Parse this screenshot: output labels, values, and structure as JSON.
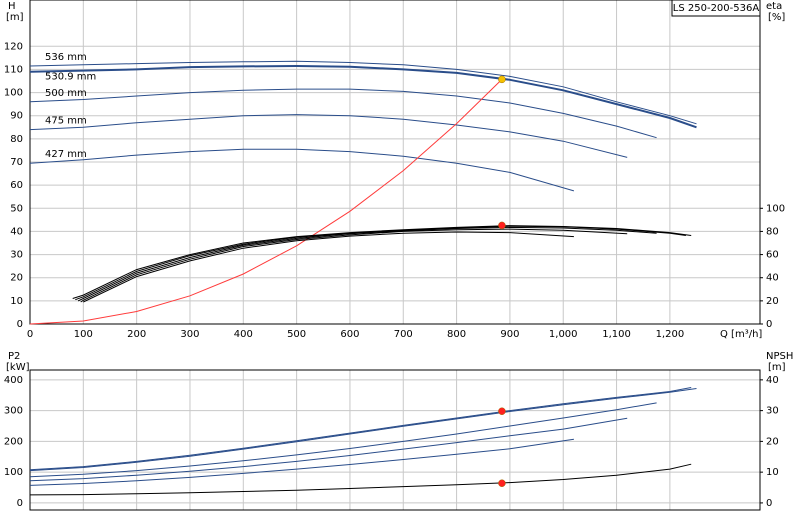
{
  "chart_data": [
    {
      "type": "line",
      "title": "LS 250-200-536A",
      "ylabel": "H",
      "yunit": "[m]",
      "y2label": "eta",
      "y2unit": "[%]",
      "xlabel": "Q [m³/h]",
      "xlim": [
        0,
        1369
      ],
      "xticks": [
        0,
        100,
        200,
        300,
        400,
        500,
        600,
        700,
        800,
        900,
        {
          "value": 1000,
          "label": "1,000"
        },
        {
          "value": 1100,
          "label": "1,100"
        },
        {
          "value": 1200,
          "label": "1,200"
        }
      ],
      "ylim": [
        0,
        140
      ],
      "yticks": [
        0,
        10,
        20,
        30,
        40,
        50,
        60,
        70,
        80,
        90,
        100,
        110,
        120
      ],
      "y2lim": [
        0,
        280
      ],
      "y2ticks": [
        0,
        20,
        40,
        60,
        80,
        100
      ],
      "grid": true,
      "series": [
        {
          "name": "536 mm",
          "color": "#2a4d8a",
          "x": [
            0,
            100,
            200,
            300,
            400,
            500,
            600,
            700,
            800,
            900,
            1000,
            1100,
            1200,
            1250
          ],
          "values": [
            111.5,
            112,
            112.5,
            113,
            113.3,
            113.5,
            113,
            112,
            110,
            107,
            102.5,
            96,
            90,
            86.5
          ]
        },
        {
          "name": "530.9 mm",
          "color": "#2a4d8a",
          "x": [
            0,
            100,
            200,
            300,
            400,
            500,
            600,
            700,
            800,
            900,
            1000,
            1100,
            1200,
            1250
          ],
          "values": [
            109,
            109.5,
            110,
            111,
            111.3,
            111.5,
            111.2,
            110,
            108.5,
            105.5,
            101,
            95,
            89,
            85
          ]
        },
        {
          "name": "500 mm",
          "color": "#2a4d8a",
          "x": [
            0,
            100,
            200,
            300,
            400,
            500,
            600,
            700,
            800,
            900,
            1000,
            1100,
            1175
          ],
          "values": [
            96,
            97,
            98.5,
            100,
            101,
            101.5,
            101.5,
            100.5,
            98.5,
            95.5,
            91,
            85.5,
            80.5
          ]
        },
        {
          "name": "475 mm",
          "color": "#2a4d8a",
          "x": [
            0,
            100,
            200,
            300,
            400,
            500,
            600,
            700,
            800,
            900,
            1000,
            1120
          ],
          "values": [
            84,
            85,
            87,
            88.5,
            90,
            90.5,
            90,
            88.5,
            86,
            83,
            79,
            72
          ]
        },
        {
          "name": "427 mm",
          "color": "#2a4d8a",
          "x": [
            0,
            100,
            200,
            300,
            400,
            500,
            600,
            700,
            800,
            900,
            1020
          ],
          "values": [
            69.5,
            71,
            73,
            74.5,
            75.5,
            75.5,
            74.5,
            72.5,
            69.5,
            65.5,
            57.5
          ]
        },
        {
          "color": "#ff3b3b",
          "x": [
            0,
            100,
            200,
            300,
            400,
            500,
            600,
            700,
            800,
            885
          ],
          "values": [
            0,
            1.3,
            5.4,
            12.2,
            21.6,
            33.8,
            48.7,
            66.3,
            86.6,
            105.7
          ]
        },
        {
          "color": "#000000",
          "axis": "y2",
          "x": [
            80,
            100,
            200,
            300,
            400,
            500,
            600,
            700,
            800,
            900,
            1000,
            1100,
            1200,
            1240
          ],
          "values": [
            22,
            25,
            47,
            60,
            70,
            75.5,
            79,
            81.5,
            83.5,
            85,
            84.3,
            82.5,
            79,
            76.5
          ]
        },
        {
          "color": "#000000",
          "axis": "y2",
          "x": [
            85,
            100,
            200,
            300,
            400,
            500,
            600,
            700,
            800,
            900,
            1000,
            1100,
            1200,
            1230
          ],
          "values": [
            21,
            23.5,
            45.5,
            59,
            69,
            75,
            78.5,
            81,
            83,
            84.5,
            84,
            82,
            78.5,
            76.5
          ]
        },
        {
          "color": "#000000",
          "axis": "y2",
          "x": [
            90,
            100,
            200,
            300,
            400,
            500,
            600,
            700,
            800,
            900,
            1000,
            1100,
            1175
          ],
          "values": [
            20,
            22,
            44,
            57.5,
            68,
            74,
            78,
            80.5,
            82.5,
            83.5,
            83,
            81,
            78.5
          ]
        },
        {
          "color": "#000000",
          "axis": "y2",
          "x": [
            95,
            100,
            200,
            300,
            400,
            500,
            600,
            700,
            800,
            900,
            1000,
            1120
          ],
          "values": [
            19,
            20.5,
            42.5,
            56,
            67,
            73,
            77,
            80,
            81.5,
            82,
            81,
            78
          ]
        },
        {
          "color": "#000000",
          "axis": "y2",
          "x": [
            100,
            200,
            300,
            400,
            500,
            600,
            700,
            800,
            900,
            1020
          ],
          "values": [
            19,
            41,
            54.5,
            65.5,
            72,
            76,
            78.5,
            79.5,
            79,
            75.5
          ]
        }
      ],
      "points": [
        {
          "x": 885,
          "y": 105.7,
          "color": "#f5c000"
        },
        {
          "x": 885,
          "y": 85.2,
          "color": "#ff2020",
          "axis": "y2"
        }
      ]
    },
    {
      "type": "line",
      "ylabel": "P2",
      "yunit": "[kW]",
      "y2label": "NPSH",
      "y2unit": "[m]",
      "xlim": [
        0,
        1369
      ],
      "xticks": [
        0,
        100,
        200,
        300,
        400,
        500,
        600,
        700,
        800,
        900,
        1000,
        1100,
        1200
      ],
      "ylim": [
        -23,
        432
      ],
      "yticks": [
        0,
        100,
        200,
        300,
        400
      ],
      "y2lim": [
        -2.3,
        43.2
      ],
      "y2ticks": [
        0,
        10,
        20,
        30,
        40
      ],
      "grid": true,
      "series": [
        {
          "color": "#2a4d8a",
          "x": [
            0,
            100,
            200,
            300,
            400,
            500,
            600,
            700,
            800,
            900,
            1000,
            1100,
            1200,
            1240
          ],
          "values": [
            108,
            118,
            135,
            155,
            178,
            202,
            227,
            252,
            276,
            300,
            322,
            343,
            362,
            375
          ]
        },
        {
          "color": "#2a4d8a",
          "x": [
            0,
            100,
            200,
            300,
            400,
            500,
            600,
            700,
            800,
            900,
            1000,
            1100,
            1200,
            1250
          ],
          "values": [
            105,
            115,
            132,
            152,
            175,
            199,
            224,
            249,
            273,
            297,
            319,
            340,
            360,
            372
          ]
        },
        {
          "color": "#2a4d8a",
          "x": [
            0,
            100,
            200,
            300,
            400,
            500,
            600,
            700,
            800,
            900,
            1000,
            1100,
            1175
          ],
          "values": [
            85,
            93,
            105,
            120,
            137,
            156,
            177,
            200,
            224,
            250,
            276,
            303,
            325
          ]
        },
        {
          "color": "#2a4d8a",
          "x": [
            0,
            100,
            200,
            300,
            400,
            500,
            600,
            700,
            800,
            900,
            1000,
            1120
          ],
          "values": [
            72,
            79,
            90,
            103,
            118,
            135,
            154,
            175,
            196,
            218,
            240,
            275
          ]
        },
        {
          "color": "#2a4d8a",
          "x": [
            0,
            100,
            200,
            300,
            400,
            500,
            600,
            700,
            800,
            900,
            1020
          ],
          "values": [
            57,
            63,
            72,
            83,
            96,
            110,
            125,
            141,
            158,
            176,
            207
          ]
        },
        {
          "color": "#000000",
          "axis": "y2",
          "x": [
            0,
            100,
            200,
            300,
            400,
            500,
            600,
            700,
            800,
            900,
            1000,
            1100,
            1200,
            1240
          ],
          "values": [
            2.6,
            2.7,
            3,
            3.3,
            3.7,
            4.1,
            4.7,
            5.3,
            5.9,
            6.6,
            7.6,
            9,
            11,
            12.6
          ]
        }
      ],
      "points": [
        {
          "x": 885,
          "y": 298,
          "color": "#ff2020"
        },
        {
          "x": 885,
          "y": 6.4,
          "color": "#ff2020",
          "axis": "y2"
        }
      ]
    }
  ]
}
